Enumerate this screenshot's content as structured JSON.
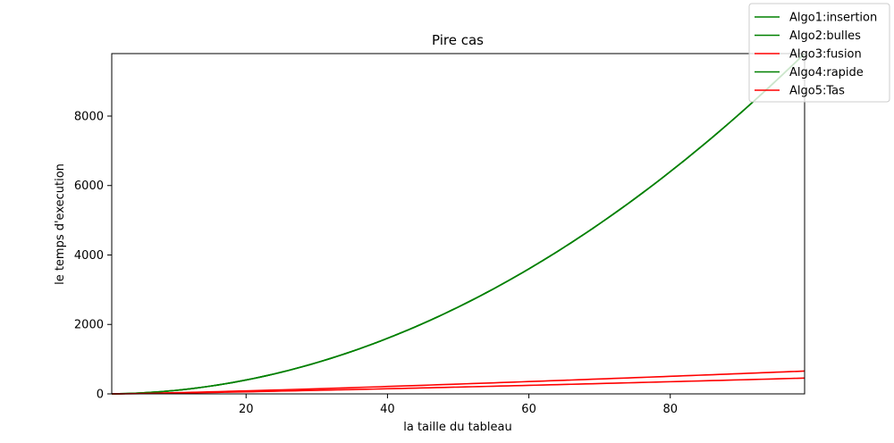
{
  "chart_data": {
    "type": "line",
    "title": "Pire cas",
    "xlabel": "la taille du tableau",
    "ylabel": "le temps d'execution",
    "xlim": [
      1,
      99
    ],
    "ylim": [
      0,
      9800
    ],
    "x_ticks": [
      20,
      40,
      60,
      80
    ],
    "y_ticks": [
      0,
      2000,
      4000,
      6000,
      8000
    ],
    "grid": false,
    "legend_position": "top-right",
    "x": [
      1,
      2,
      3,
      4,
      5,
      6,
      7,
      8,
      9,
      10,
      11,
      12,
      13,
      14,
      15,
      16,
      17,
      18,
      19,
      20,
      21,
      22,
      23,
      24,
      25,
      26,
      27,
      28,
      29,
      30,
      31,
      32,
      33,
      34,
      35,
      36,
      37,
      38,
      39,
      40,
      41,
      42,
      43,
      44,
      45,
      46,
      47,
      48,
      49,
      50,
      51,
      52,
      53,
      54,
      55,
      56,
      57,
      58,
      59,
      60,
      61,
      62,
      63,
      64,
      65,
      66,
      67,
      68,
      69,
      70,
      71,
      72,
      73,
      74,
      75,
      76,
      77,
      78,
      79,
      80,
      81,
      82,
      83,
      84,
      85,
      86,
      87,
      88,
      89,
      90,
      91,
      92,
      93,
      94,
      95,
      96,
      97,
      98,
      99
    ],
    "series": [
      {
        "name": "Algo1:insertion",
        "color": "#008000",
        "values": [
          1,
          4,
          9,
          16,
          25,
          36,
          49,
          64,
          81,
          100,
          121,
          144,
          169,
          196,
          225,
          256,
          289,
          324,
          361,
          400,
          441,
          484,
          529,
          576,
          625,
          676,
          729,
          784,
          841,
          900,
          961,
          1024,
          1089,
          1156,
          1225,
          1296,
          1369,
          1444,
          1521,
          1600,
          1681,
          1764,
          1849,
          1936,
          2025,
          2116,
          2209,
          2304,
          2401,
          2500,
          2601,
          2704,
          2809,
          2916,
          3025,
          3136,
          3249,
          3364,
          3481,
          3600,
          3721,
          3844,
          3969,
          4096,
          4225,
          4356,
          4489,
          4624,
          4761,
          4900,
          5041,
          5184,
          5329,
          5476,
          5625,
          5776,
          5929,
          6084,
          6241,
          6400,
          6561,
          6724,
          6889,
          7056,
          7225,
          7396,
          7569,
          7744,
          7921,
          8100,
          8281,
          8464,
          8649,
          8836,
          9025,
          9216,
          9409,
          9604,
          9801
        ]
      },
      {
        "name": "Algo2:bulles",
        "color": "#008000",
        "values": [
          1,
          4,
          9,
          16,
          25,
          36,
          49,
          64,
          81,
          100,
          121,
          144,
          169,
          196,
          225,
          256,
          289,
          324,
          361,
          400,
          441,
          484,
          529,
          576,
          625,
          676,
          729,
          784,
          841,
          900,
          961,
          1024,
          1089,
          1156,
          1225,
          1296,
          1369,
          1444,
          1521,
          1600,
          1681,
          1764,
          1849,
          1936,
          2025,
          2116,
          2209,
          2304,
          2401,
          2500,
          2601,
          2704,
          2809,
          2916,
          3025,
          3136,
          3249,
          3364,
          3481,
          3600,
          3721,
          3844,
          3969,
          4096,
          4225,
          4356,
          4489,
          4624,
          4761,
          4900,
          5041,
          5184,
          5329,
          5476,
          5625,
          5776,
          5929,
          6084,
          6241,
          6400,
          6561,
          6724,
          6889,
          7056,
          7225,
          7396,
          7569,
          7744,
          7921,
          8100,
          8281,
          8464,
          8649,
          8836,
          9025,
          9216,
          9409,
          9604,
          9801
        ]
      },
      {
        "name": "Algo3:fusion",
        "color": "#ff0000",
        "values": [
          0,
          2,
          4.8,
          8,
          11.6,
          15.5,
          19.7,
          24,
          28.5,
          33.2,
          38.1,
          43,
          48.1,
          53.3,
          58.6,
          64,
          69.5,
          75.1,
          80.7,
          86.4,
          92.2,
          98.1,
          104,
          110,
          116.1,
          122.2,
          128.4,
          134.6,
          140.9,
          147.2,
          153.6,
          160,
          166.5,
          173,
          179.5,
          186.1,
          192.7,
          199.4,
          206.1,
          212.9,
          219.7,
          226.5,
          233.3,
          240.2,
          247.1,
          254.1,
          261.1,
          268.1,
          275.1,
          282.2,
          289.3,
          296.4,
          303.6,
          310.8,
          318,
          325.2,
          332.5,
          339.8,
          347.1,
          354.4,
          361.8,
          369.2,
          376.6,
          384,
          391.5,
          399,
          406.5,
          414,
          421.6,
          429.1,
          436.7,
          444.2,
          451.8,
          459.5,
          467.1,
          474.8,
          482.5,
          490.2,
          497.9,
          505.7,
          513.5,
          521.3,
          529.1,
          536.9,
          544.8,
          552.6,
          560.5,
          568.4,
          576.3,
          584.3,
          592.2,
          600.2,
          608.2,
          616.2,
          624.2,
          632.2,
          640.2,
          648.2,
          656.3
        ]
      },
      {
        "name": "Algo4:rapide",
        "color": "#008000",
        "values": [
          1,
          4,
          9,
          16,
          25,
          36,
          49,
          64,
          81,
          100,
          121,
          144,
          169,
          196,
          225,
          256,
          289,
          324,
          361,
          400,
          441,
          484,
          529,
          576,
          625,
          676,
          729,
          784,
          841,
          900,
          961,
          1024,
          1089,
          1156,
          1225,
          1296,
          1369,
          1444,
          1521,
          1600,
          1681,
          1764,
          1849,
          1936,
          2025,
          2116,
          2209,
          2304,
          2401,
          2500,
          2601,
          2704,
          2809,
          2916,
          3025,
          3136,
          3249,
          3364,
          3481,
          3600,
          3721,
          3844,
          3969,
          4096,
          4225,
          4356,
          4489,
          4624,
          4761,
          4900,
          5041,
          5184,
          5329,
          5476,
          5625,
          5776,
          5929,
          6084,
          6241,
          6400,
          6561,
          6724,
          6889,
          7056,
          7225,
          7396,
          7569,
          7744,
          7921,
          8100,
          8281,
          8464,
          8649,
          8836,
          9025,
          9216,
          9409,
          9604,
          9801
        ]
      },
      {
        "name": "Algo5:Tas",
        "color": "#ff0000",
        "values": [
          0,
          1.4,
          3.3,
          5.5,
          8,
          10.8,
          13.6,
          16.6,
          19.8,
          23,
          26.4,
          29.8,
          33.3,
          37,
          40.6,
          44.4,
          48.2,
          52,
          56,
          59.9,
          63.9,
          68,
          72.1,
          76.3,
          80.5,
          84.7,
          89,
          93.3,
          97.7,
          102.1,
          106.5,
          110.9,
          115.4,
          119.9,
          124.5,
          129,
          133.6,
          138.2,
          142.9,
          147.6,
          152.3,
          157,
          161.7,
          166.5,
          171.3,
          176.1,
          180.9,
          185.8,
          190.7,
          195.6,
          200.5,
          205.5,
          210.5,
          215.4,
          220.4,
          225.5,
          230.5,
          235.5,
          240.6,
          245.7,
          250.8,
          255.9,
          261.1,
          266.2,
          271.4,
          276.5,
          281.7,
          286.9,
          292.2,
          297.4,
          302.7,
          307.9,
          313.2,
          318.5,
          323.8,
          329.1,
          334.5,
          339.8,
          345.2,
          350.5,
          355.9,
          361.3,
          366.7,
          372.1,
          377.6,
          383,
          388.5,
          393.9,
          399.4,
          404.9,
          410.4,
          415.9,
          421.4,
          427,
          432.5,
          438.1,
          443.6,
          449.2,
          454.8
        ]
      }
    ]
  }
}
